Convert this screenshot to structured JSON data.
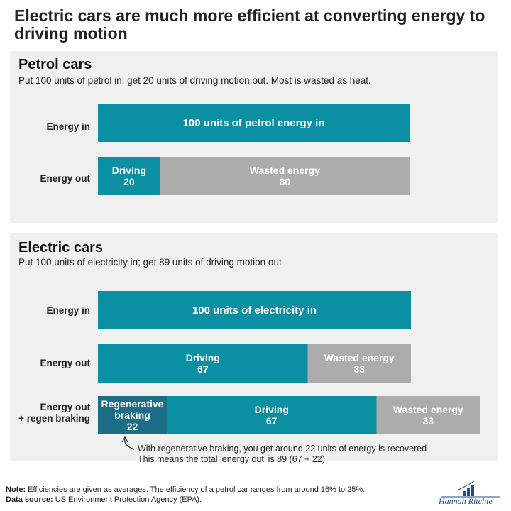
{
  "title": "Electric cars are much more efficient at converting energy to driving motion",
  "colors": {
    "teal": "#0b8fa3",
    "dark_teal": "#1b6e86",
    "grey": "#acacac",
    "panel_bg": "#f0f0f0"
  },
  "petrol": {
    "title": "Petrol cars",
    "subtitle": "Put 100 units of petrol in; get 20 units of driving motion out. Most is wasted as heat."
  },
  "electric": {
    "title": "Electric cars",
    "subtitle": "Put 100 units of electricity in; get 89 units of driving motion out"
  },
  "annotation": {
    "line1": "With regenerative braking, you get around 22 units of energy is recovered",
    "line2": "This means the total ‘energy out’ is 89 (67 + 22)"
  },
  "footer": {
    "note_label": "Note:",
    "note_text": " Efficiencies are given as averages. The efficiency of a petrol car ranges from around 16% to 25%.",
    "source_label": "Data source:",
    "source_text": " US Environment Protection Agency (EPA)."
  },
  "logo_text": "Hannah Ritchie",
  "chart_data": [
    {
      "type": "bar",
      "orientation": "horizontal-stacked",
      "title": "Petrol cars",
      "rows": [
        {
          "label": "Energy in",
          "segments": [
            {
              "name": "",
              "label": "100 units of petrol energy in",
              "value": 100,
              "color": "teal"
            }
          ]
        },
        {
          "label": "Energy out",
          "segments": [
            {
              "name": "Driving",
              "label": "Driving",
              "value": 20,
              "color": "teal"
            },
            {
              "name": "Wasted energy",
              "label": "Wasted energy",
              "value": 80,
              "color": "grey"
            }
          ]
        }
      ]
    },
    {
      "type": "bar",
      "orientation": "horizontal-stacked",
      "title": "Electric cars",
      "rows": [
        {
          "label": "Energy in",
          "segments": [
            {
              "name": "",
              "label": "100 units of electricity in",
              "value": 100,
              "color": "teal"
            }
          ]
        },
        {
          "label": "Energy out",
          "segments": [
            {
              "name": "Driving",
              "label": "Driving",
              "value": 67,
              "color": "teal"
            },
            {
              "name": "Wasted energy",
              "label": "Wasted energy",
              "value": 33,
              "color": "grey"
            }
          ]
        },
        {
          "label": "Energy out\n+ regen braking",
          "segments": [
            {
              "name": "Regenerative braking",
              "label": "Regenerative\nbraking",
              "value": 22,
              "color": "dark_teal"
            },
            {
              "name": "Driving",
              "label": "Driving",
              "value": 67,
              "color": "teal"
            },
            {
              "name": "Wasted energy",
              "label": "Wasted energy",
              "value": 33,
              "color": "grey"
            }
          ]
        }
      ]
    }
  ]
}
